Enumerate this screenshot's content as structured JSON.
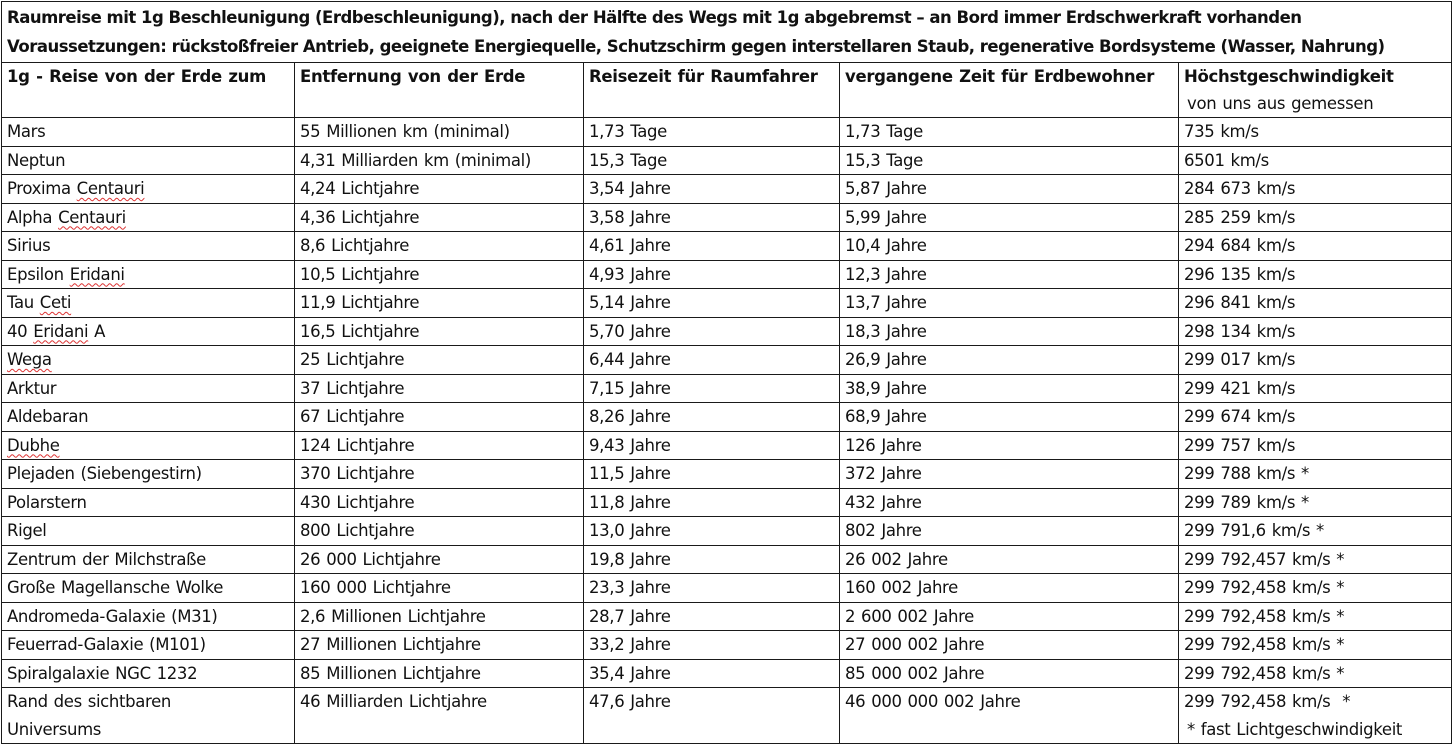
{
  "title_line_1": "Raumreise mit 1g Beschleunigung (Erdbeschleunigung), nach der Hälfte des Wegs mit 1g abgebremst – an Bord immer Erdschwerkraft vorhanden",
  "title_line_2": "Voraussetzungen: rückstoßfreier Antrieb, geeignete Energiequelle, Schutzschirm gegen interstellaren Staub, regenerative Bordsysteme (Wasser, Nahrung)",
  "headers": {
    "destination": "1g - Reise von der Erde zum",
    "distance": "Entfernung von der Erde",
    "ship_time": "Reisezeit für Raumfahrer",
    "earth_time": "vergangene Zeit für Erdbewohner",
    "max_speed": "Höchstgeschwindigkeit",
    "max_speed_sub": "von uns aus gemessen"
  },
  "rows": [
    {
      "dest": "Mars",
      "dist": "55 Millionen km (minimal)",
      "ship": "1,73 Tage",
      "earth": "1,73 Tage",
      "speed": "735 km/s"
    },
    {
      "dest": "Neptun",
      "dist": "4,31 Milliarden km (minimal)",
      "ship": "15,3 Tage",
      "earth": "15,3 Tage",
      "speed": "6501 km/s"
    },
    {
      "dest": "Proxima Centauri",
      "dist": "4,24 Lichtjahre",
      "ship": "3,54 Jahre",
      "earth": "5,87 Jahre",
      "speed": "284 673 km/s"
    },
    {
      "dest": "Alpha Centauri",
      "dist": "4,36 Lichtjahre",
      "ship": "3,58 Jahre",
      "earth": "5,99 Jahre",
      "speed": "285 259 km/s"
    },
    {
      "dest": "Sirius",
      "dist": "8,6 Lichtjahre",
      "ship": "4,61 Jahre",
      "earth": "10,4 Jahre",
      "speed": "294 684 km/s"
    },
    {
      "dest": "Epsilon Eridani",
      "dist": "10,5 Lichtjahre",
      "ship": "4,93 Jahre",
      "earth": "12,3 Jahre",
      "speed": "296 135 km/s"
    },
    {
      "dest": "Tau Ceti",
      "dist": "11,9 Lichtjahre",
      "ship": "5,14 Jahre",
      "earth": "13,7 Jahre",
      "speed": "296 841 km/s"
    },
    {
      "dest": "40 Eridani A",
      "dist": "16,5 Lichtjahre",
      "ship": "5,70 Jahre",
      "earth": "18,3 Jahre",
      "speed": "298 134 km/s"
    },
    {
      "dest": "Wega",
      "dist": "25 Lichtjahre",
      "ship": "6,44 Jahre",
      "earth": "26,9 Jahre",
      "speed": "299 017 km/s"
    },
    {
      "dest": "Arktur",
      "dist": "37 Lichtjahre",
      "ship": "7,15 Jahre",
      "earth": "38,9 Jahre",
      "speed": "299 421 km/s"
    },
    {
      "dest": "Aldebaran",
      "dist": "67 Lichtjahre",
      "ship": "8,26 Jahre",
      "earth": "68,9 Jahre",
      "speed": "299 674 km/s"
    },
    {
      "dest": "Dubhe",
      "dist": "124 Lichtjahre",
      "ship": "9,43 Jahre",
      "earth": "126 Jahre",
      "speed": "299 757 km/s"
    },
    {
      "dest": "Plejaden (Siebengestirn)",
      "dist": "370 Lichtjahre",
      "ship": "11,5 Jahre",
      "earth": "372 Jahre",
      "speed": "299 788 km/s *"
    },
    {
      "dest": "Polarstern",
      "dist": "430 Lichtjahre",
      "ship": "11,8 Jahre",
      "earth": "432 Jahre",
      "speed": "299 789 km/s *"
    },
    {
      "dest": "Rigel",
      "dist": "800 Lichtjahre",
      "ship": "13,0 Jahre",
      "earth": "802 Jahre",
      "speed": "299 791,6 km/s *"
    },
    {
      "dest": "Zentrum der Milchstraße",
      "dist": "26 000 Lichtjahre",
      "ship": "19,8 Jahre",
      "earth": "26 002 Jahre",
      "speed": "299 792,457 km/s *"
    },
    {
      "dest": "Große Magellansche Wolke",
      "dist": "160 000 Lichtjahre",
      "ship": "23,3 Jahre",
      "earth": "160 002 Jahre",
      "speed": "299 792,458 km/s *"
    },
    {
      "dest": "Andromeda-Galaxie (M31)",
      "dist": "2,6 Millionen Lichtjahre",
      "ship": "28,7 Jahre",
      "earth": "2 600 002 Jahre",
      "speed": "299 792,458 km/s *"
    },
    {
      "dest": "Feuerrad-Galaxie (M101)",
      "dist": "27 Millionen Lichtjahre",
      "ship": "33,2 Jahre",
      "earth": "27 000 002 Jahre",
      "speed": "299 792,458 km/s *"
    },
    {
      "dest": "Spiralgalaxie NGC 1232",
      "dist": "85 Millionen Lichtjahre",
      "ship": "35,4 Jahre",
      "earth": "85 000 002 Jahre",
      "speed": "299 792,458 km/s *"
    }
  ],
  "last_row": {
    "dest_line_1": "Rand des sichtbaren",
    "dest_line_2": "Universums",
    "dist": "46 Milliarden Lichtjahre",
    "ship": "47,6 Jahre",
    "earth": "46 000 000 002 Jahre",
    "speed": "299 792,458 km/s  *",
    "footnote": "* fast Lichtgeschwindigkeit"
  },
  "spellcheck_flagged_words": [
    "Centauri",
    "Eridani",
    "Ceti",
    "Wega",
    "Dubhe"
  ],
  "spellcheck_underline_color": "#dd3333"
}
